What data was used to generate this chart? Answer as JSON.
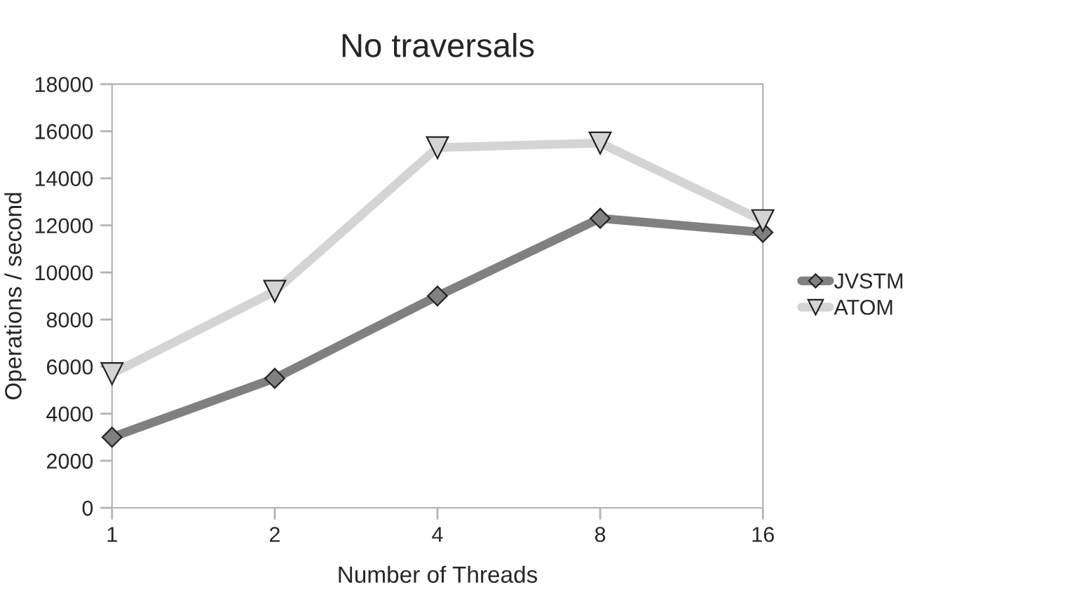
{
  "chart_data": {
    "type": "line",
    "title": "No traversals",
    "xlabel": "Number of Threads",
    "ylabel": "Operations / second",
    "categories": [
      "1",
      "2",
      "4",
      "8",
      "16"
    ],
    "series": [
      {
        "name": "JVSTM",
        "color": "#808080",
        "values": [
          3000,
          5500,
          9000,
          12300,
          11700
        ],
        "marker": "diamond"
      },
      {
        "name": "ATOM",
        "color": "#d4d4d4",
        "values": [
          5700,
          9200,
          15300,
          15500,
          12200
        ],
        "marker": "triangle"
      }
    ],
    "ylim": [
      0,
      18000
    ],
    "yticks": [
      0,
      2000,
      4000,
      6000,
      8000,
      10000,
      12000,
      14000,
      16000,
      18000
    ],
    "grid": false,
    "legend": "right",
    "line_style": "solid"
  }
}
